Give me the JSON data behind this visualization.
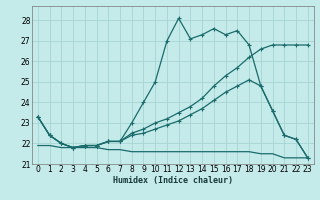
{
  "xlabel": "Humidex (Indice chaleur)",
  "xlim": [
    -0.5,
    23.5
  ],
  "ylim": [
    21.0,
    28.7
  ],
  "yticks": [
    21,
    22,
    23,
    24,
    25,
    26,
    27,
    28
  ],
  "xticks": [
    0,
    1,
    2,
    3,
    4,
    5,
    6,
    7,
    8,
    9,
    10,
    11,
    12,
    13,
    14,
    15,
    16,
    17,
    18,
    19,
    20,
    21,
    22,
    23
  ],
  "bg_color": "#c5eaea",
  "line_color": "#1a6b6b",
  "grid_color": "#a8d4d4",
  "line_peak_x": [
    0,
    1,
    2,
    3,
    4,
    5,
    6,
    7,
    8,
    9,
    10,
    11,
    12,
    13,
    14,
    15,
    16,
    17,
    18,
    19,
    20,
    21,
    22,
    23
  ],
  "line_peak_y": [
    23.3,
    22.4,
    22.0,
    21.8,
    21.9,
    21.9,
    22.1,
    22.1,
    23.0,
    24.0,
    25.0,
    27.0,
    28.1,
    27.1,
    27.3,
    27.6,
    27.3,
    27.5,
    26.8,
    24.8,
    23.6,
    22.4,
    22.2,
    21.3
  ],
  "line_rise_x": [
    0,
    1,
    2,
    3,
    4,
    5,
    6,
    7,
    8,
    9,
    10,
    11,
    12,
    13,
    14,
    15,
    16,
    17,
    18,
    19,
    20,
    21,
    22,
    23
  ],
  "line_rise_y": [
    23.3,
    22.4,
    22.0,
    21.8,
    21.9,
    21.9,
    22.1,
    22.1,
    22.5,
    22.7,
    23.0,
    23.2,
    23.5,
    23.8,
    24.2,
    24.8,
    25.3,
    25.7,
    26.2,
    26.6,
    26.8,
    26.8,
    26.8,
    26.8
  ],
  "line_mid_x": [
    0,
    1,
    2,
    3,
    4,
    5,
    6,
    7,
    8,
    9,
    10,
    11,
    12,
    13,
    14,
    15,
    16,
    17,
    18,
    19,
    20,
    21,
    22,
    23
  ],
  "line_mid_y": [
    23.3,
    22.4,
    22.0,
    21.8,
    21.9,
    21.9,
    22.1,
    22.1,
    22.4,
    22.5,
    22.7,
    22.9,
    23.1,
    23.4,
    23.7,
    24.1,
    24.5,
    24.8,
    25.1,
    24.8,
    23.6,
    22.4,
    22.2,
    21.3
  ],
  "line_step_x": [
    0,
    1,
    2,
    3,
    4,
    5,
    6,
    7,
    8,
    9,
    10,
    11,
    12,
    13,
    14,
    15,
    16,
    17,
    18,
    19,
    20,
    21,
    22,
    23
  ],
  "line_step_y": [
    21.9,
    21.9,
    21.8,
    21.8,
    21.8,
    21.8,
    21.7,
    21.7,
    21.6,
    21.6,
    21.6,
    21.6,
    21.6,
    21.6,
    21.6,
    21.6,
    21.6,
    21.6,
    21.6,
    21.5,
    21.5,
    21.3,
    21.3,
    21.3
  ]
}
